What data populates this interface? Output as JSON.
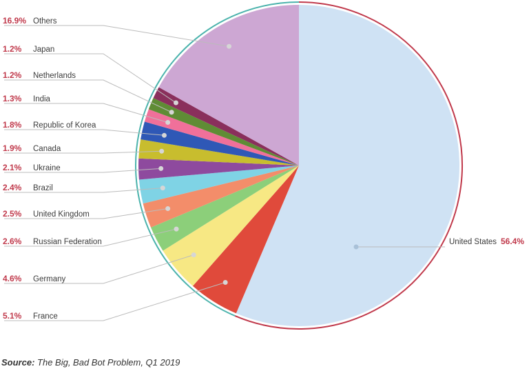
{
  "chart_data": {
    "type": "pie",
    "title": "",
    "unit": "%",
    "slices": [
      {
        "label": "United States",
        "value": 56.4,
        "display": "56.4%",
        "color": "#cfe2f4"
      },
      {
        "label": "France",
        "value": 5.1,
        "display": "5.1%",
        "color": "#e04a3b"
      },
      {
        "label": "Germany",
        "value": 4.6,
        "display": "4.6%",
        "color": "#f7e884"
      },
      {
        "label": "Russian Federation",
        "value": 2.6,
        "display": "2.6%",
        "color": "#8ccf7a"
      },
      {
        "label": "United Kingdom",
        "value": 2.5,
        "display": "2.5%",
        "color": "#f38d6a"
      },
      {
        "label": "Brazil",
        "value": 2.4,
        "display": "2.4%",
        "color": "#7fd3e5"
      },
      {
        "label": "Ukraine",
        "value": 2.1,
        "display": "2.1%",
        "color": "#8e4a9e"
      },
      {
        "label": "Canada",
        "value": 1.9,
        "display": "1.9%",
        "color": "#c8bd2e"
      },
      {
        "label": "Republic of Korea",
        "value": 1.8,
        "display": "1.8%",
        "color": "#2f58b6"
      },
      {
        "label": "India",
        "value": 1.3,
        "display": "1.3%",
        "color": "#f0709a"
      },
      {
        "label": "Netherlands",
        "value": 1.2,
        "display": "1.2%",
        "color": "#5f8c35"
      },
      {
        "label": "Japan",
        "value": 1.2,
        "display": "1.2%",
        "color": "#8a2f5c"
      },
      {
        "label": "Others",
        "value": 16.9,
        "display": "16.9%",
        "color": "#cda7d3"
      }
    ],
    "colors": {
      "percent_text": "#c0394b",
      "leader_line": "#bbbbbb",
      "ring_us": "#c0394b",
      "ring_rest": "#4bb3ac"
    }
  },
  "source": {
    "prefix": "Source:",
    "text": " The Big, Bad Bot Problem, Q1 2019"
  }
}
